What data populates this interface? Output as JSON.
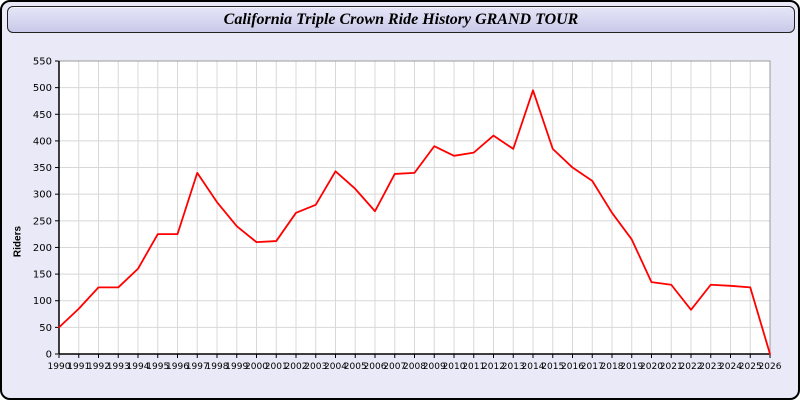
{
  "page": {
    "background": "#e9e9f7",
    "border_color": "#000000"
  },
  "title_bar": {
    "title": "California Triple Crown Ride History GRAND TOUR",
    "background": "#d4d4ee"
  },
  "chart_data": {
    "type": "line",
    "title": "California Triple Crown Ride History GRAND TOUR",
    "xlabel": "",
    "ylabel": "Riders",
    "ylim": [
      0,
      550
    ],
    "ytick_step": 50,
    "grid": true,
    "legend": "none",
    "line_color": "#ff0000",
    "grid_color": "#d8d8d8",
    "plot_background": "#ffffff",
    "categories": [
      "1990",
      "1991",
      "1992",
      "1993",
      "1994",
      "1995",
      "1996",
      "1997",
      "1998",
      "1999",
      "2000",
      "2001",
      "2002",
      "2003",
      "2004",
      "2005",
      "2006",
      "2007",
      "2008",
      "2009",
      "2010",
      "2011",
      "2012",
      "2013",
      "2014",
      "2015",
      "2016",
      "2017",
      "2018",
      "2019",
      "2020",
      "2021",
      "2022",
      "2023",
      "2024",
      "2025",
      "2026"
    ],
    "values": [
      50,
      85,
      125,
      125,
      160,
      225,
      225,
      340,
      285,
      240,
      210,
      212,
      265,
      280,
      343,
      310,
      268,
      338,
      340,
      390,
      372,
      378,
      410,
      385,
      495,
      385,
      350,
      325,
      265,
      215,
      135,
      130,
      83,
      130,
      128,
      125,
      0
    ]
  }
}
